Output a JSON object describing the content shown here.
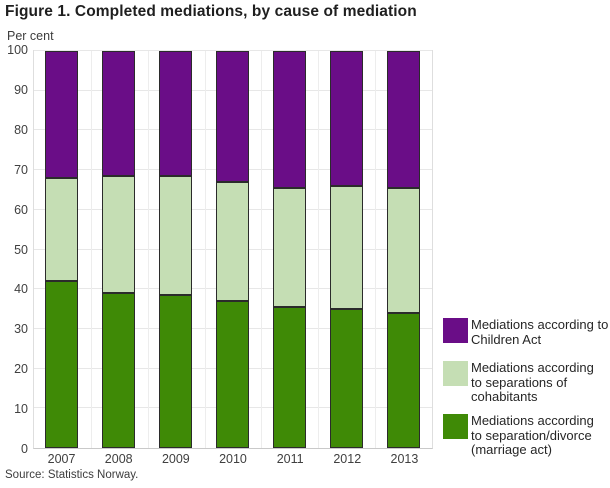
{
  "title": "Figure 1. Completed mediations, by cause of mediation",
  "unit_label": "Per cent",
  "source": "Source: Statistics Norway.",
  "colors": {
    "children_act_purple": "#6a0d87",
    "cohabitants_light_green": "#c5deb4",
    "marriage_act_dark_green": "#3f8a06",
    "bar_border": "#2b2b2b",
    "gridline": "#e7e7e7"
  },
  "chart_data": {
    "type": "bar",
    "stacked": true,
    "title": "Figure 1. Completed mediations, by cause of mediation",
    "ylabel": "Per cent",
    "ylim": [
      0,
      100
    ],
    "yticks": [
      0,
      10,
      20,
      30,
      40,
      50,
      60,
      70,
      80,
      90,
      100
    ],
    "grid": true,
    "legend_position": "right",
    "categories": [
      "2007",
      "2008",
      "2009",
      "2010",
      "2011",
      "2012",
      "2013"
    ],
    "series": [
      {
        "name": "Mediations according to separation/divorce (marriage act)",
        "color": "#3f8a06",
        "values": [
          42,
          39,
          38.5,
          37,
          35.5,
          35,
          34
        ]
      },
      {
        "name": "Mediations according to separations of cohabitants",
        "color": "#c5deb4",
        "values": [
          26,
          29.5,
          30,
          30,
          30,
          31,
          31.5
        ]
      },
      {
        "name": "Mediations according to Children Act",
        "color": "#6a0d87",
        "values": [
          32,
          31.5,
          31.5,
          33,
          34.5,
          34,
          34.5
        ]
      }
    ]
  },
  "legend": {
    "items": [
      {
        "color": "#6a0d87",
        "label": "Mediations according to Children Act",
        "lines": [
          "Mediations according to",
          "Children Act"
        ]
      },
      {
        "color": "#c5deb4",
        "label": "Mediations according to separations of cohabitants",
        "lines": [
          "Mediations according",
          "to separations of",
          "cohabitants"
        ]
      },
      {
        "color": "#3f8a06",
        "label": "Mediations according to separation/divorce (marriage act)",
        "lines": [
          "Mediations according",
          "to separation/divorce",
          "(marriage act)"
        ]
      }
    ]
  }
}
